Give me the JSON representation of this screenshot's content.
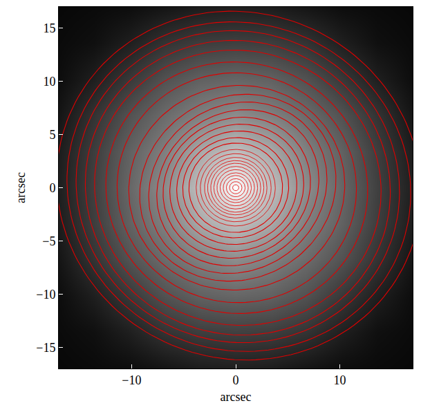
{
  "chart_data": {
    "type": "image_contours",
    "x_label": "arcsec",
    "y_label": "arcsec",
    "xlim": [
      -17,
      17
    ],
    "ylim": [
      -17,
      17
    ],
    "xticks": [
      {
        "value": -10,
        "label": "−10"
      },
      0,
      10
    ],
    "yticks": [
      {
        "value": -15,
        "label": "−15"
      },
      {
        "value": -10,
        "label": "−10"
      },
      {
        "value": -5,
        "label": "−5"
      },
      0,
      5,
      10,
      15
    ],
    "grid": false,
    "color": "#e00000",
    "image": {
      "x": [
        -17,
        -13.6,
        -10.2,
        -6.8,
        -3.4,
        0,
        3.4,
        6.8,
        10.2,
        13.6,
        17
      ],
      "y": [
        -17,
        -13.6,
        -10.2,
        -6.8,
        -3.4,
        0,
        3.4,
        6.8,
        10.2,
        13.6,
        17
      ],
      "zlim": [
        0,
        1
      ],
      "z": [
        [
          0.03,
          0.04,
          0.05,
          0.08,
          0.11,
          0.12,
          0.11,
          0.08,
          0.05,
          0.04,
          0.03
        ],
        [
          0.04,
          0.06,
          0.12,
          0.2,
          0.24,
          0.25,
          0.24,
          0.2,
          0.12,
          0.06,
          0.04
        ],
        [
          0.05,
          0.12,
          0.22,
          0.32,
          0.38,
          0.4,
          0.38,
          0.32,
          0.22,
          0.12,
          0.05
        ],
        [
          0.08,
          0.2,
          0.32,
          0.42,
          0.5,
          0.55,
          0.5,
          0.42,
          0.32,
          0.2,
          0.08
        ],
        [
          0.11,
          0.24,
          0.38,
          0.5,
          0.66,
          0.75,
          0.66,
          0.5,
          0.38,
          0.24,
          0.11
        ],
        [
          0.12,
          0.25,
          0.4,
          0.55,
          0.75,
          1.0,
          0.75,
          0.55,
          0.4,
          0.25,
          0.12
        ],
        [
          0.11,
          0.24,
          0.38,
          0.5,
          0.66,
          0.75,
          0.66,
          0.5,
          0.38,
          0.24,
          0.11
        ],
        [
          0.08,
          0.2,
          0.32,
          0.42,
          0.5,
          0.55,
          0.5,
          0.42,
          0.32,
          0.2,
          0.08
        ],
        [
          0.05,
          0.12,
          0.22,
          0.32,
          0.38,
          0.4,
          0.38,
          0.32,
          0.22,
          0.12,
          0.05
        ],
        [
          0.04,
          0.06,
          0.12,
          0.2,
          0.24,
          0.25,
          0.24,
          0.2,
          0.12,
          0.06,
          0.04
        ],
        [
          0.03,
          0.04,
          0.05,
          0.08,
          0.11,
          0.12,
          0.11,
          0.08,
          0.05,
          0.04,
          0.03
        ]
      ]
    },
    "ellipses": [
      {
        "x0": 0.3,
        "y0": 0.2,
        "a": 17.6,
        "b": 16.3,
        "pa": -16
      },
      {
        "x0": 0.3,
        "y0": 0.1,
        "a": 16.6,
        "b": 15.4,
        "pa": -16
      },
      {
        "x0": 0.2,
        "y0": 0.1,
        "a": 15.6,
        "b": 14.6,
        "pa": -15
      },
      {
        "x0": 0.2,
        "y0": 0.0,
        "a": 14.7,
        "b": 13.8,
        "pa": -14
      },
      {
        "x0": 0.2,
        "y0": 0.0,
        "a": 13.8,
        "b": 12.9,
        "pa": -12
      },
      {
        "x0": 0.1,
        "y0": 0.0,
        "a": 12.6,
        "b": 11.8,
        "pa": -10
      },
      {
        "x0": 0.1,
        "y0": 0.0,
        "a": 11.5,
        "b": 10.8,
        "pa": -5
      },
      {
        "x0": 0.1,
        "y0": 0.0,
        "a": 10.4,
        "b": 9.6,
        "pa": 10
      },
      {
        "x0": 0.2,
        "y0": 0.0,
        "a": 9.6,
        "b": 8.6,
        "pa": 25
      },
      {
        "x0": 0.2,
        "y0": 0.0,
        "a": 8.8,
        "b": 7.8,
        "pa": 30
      },
      {
        "x0": 0.2,
        "y0": 0.0,
        "a": 8.0,
        "b": 7.1,
        "pa": 30
      },
      {
        "x0": 0.1,
        "y0": 0.0,
        "a": 7.2,
        "b": 6.5,
        "pa": 25
      },
      {
        "x0": 0.1,
        "y0": 0.0,
        "a": 6.5,
        "b": 5.9,
        "pa": 20
      },
      {
        "x0": 0.1,
        "y0": 0.0,
        "a": 5.8,
        "b": 5.3,
        "pa": 15
      },
      {
        "x0": 0.0,
        "y0": 0.0,
        "a": 5.1,
        "b": 4.7,
        "pa": 10
      },
      {
        "x0": 0.0,
        "y0": 0.0,
        "a": 4.5,
        "b": 4.2,
        "pa": 5
      },
      {
        "x0": 0.0,
        "y0": 0.0,
        "a": 3.8,
        "b": 3.6,
        "pa": 0
      },
      {
        "x0": 0.0,
        "y0": 0.0,
        "a": 3.4,
        "b": 3.2,
        "pa": 0
      },
      {
        "x0": 0.0,
        "y0": 0.0,
        "a": 3.0,
        "b": 2.85,
        "pa": 0
      },
      {
        "x0": 0.0,
        "y0": 0.0,
        "a": 2.7,
        "b": 2.55,
        "pa": 0
      },
      {
        "x0": 0.0,
        "y0": 0.0,
        "a": 2.4,
        "b": 2.3,
        "pa": 0
      },
      {
        "x0": 0.0,
        "y0": 0.0,
        "a": 2.1,
        "b": 2.0,
        "pa": 0
      },
      {
        "x0": 0.0,
        "y0": 0.0,
        "a": 1.8,
        "b": 1.7,
        "pa": 0
      },
      {
        "x0": 0.0,
        "y0": 0.0,
        "a": 1.5,
        "b": 1.4,
        "pa": 0
      },
      {
        "x0": 0.0,
        "y0": 0.0,
        "a": 1.2,
        "b": 1.15,
        "pa": 0
      },
      {
        "x0": 0.0,
        "y0": 0.0,
        "a": 0.9,
        "b": 0.85,
        "pa": 0
      },
      {
        "x0": 0.0,
        "y0": 0.0,
        "a": 0.6,
        "b": 0.57,
        "pa": 0
      },
      {
        "x0": 0.0,
        "y0": 0.0,
        "a": 0.3,
        "b": 0.28,
        "pa": 0
      }
    ]
  }
}
